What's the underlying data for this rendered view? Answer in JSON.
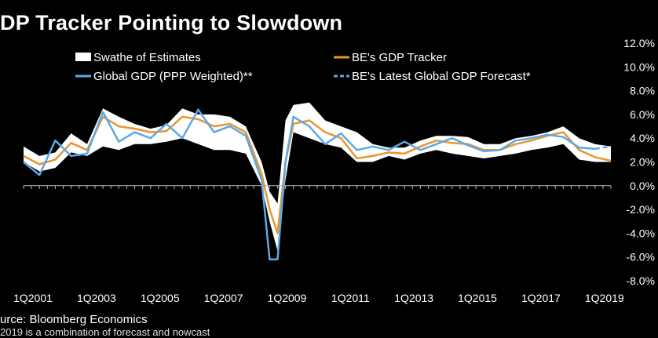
{
  "chart_data": {
    "type": "line",
    "title": "DP Tracker Pointing to Slowdown",
    "source": "urce: Bloomberg Economics",
    "footnote": "2019 is a combination of forecast and nowcast",
    "ylim": [
      -8,
      12
    ],
    "y_ticks": [
      "12.0%",
      "10.0%",
      "8.0%",
      "6.0%",
      "4.0%",
      "2.0%",
      "0.0%",
      "-2.0%",
      "-4.0%",
      "-6.0%",
      "-8.0%"
    ],
    "x_ticks": [
      "1Q2001",
      "1Q2003",
      "1Q2005",
      "1Q2007",
      "1Q2009",
      "1Q2011",
      "1Q2013",
      "1Q2015",
      "1Q2017",
      "1Q2019"
    ],
    "legend": [
      {
        "label": "Swathe of Estimates",
        "color": "#ffffff",
        "style": "band"
      },
      {
        "label": "BE's GDP Tracker",
        "color": "#e8962e",
        "style": "solid"
      },
      {
        "label": "Global GDP (PPP Weighted)**",
        "color": "#5aa9e6",
        "style": "solid"
      },
      {
        "label": "BE's Latest Global GDP Forecast*",
        "color": "#5aa9e6",
        "style": "dashed"
      }
    ],
    "x_start": 2001.0,
    "x_end": 2019.5,
    "band": {
      "x": [
        2001.0,
        2001.5,
        2002.0,
        2002.5,
        2003.0,
        2003.5,
        2004.0,
        2004.5,
        2005.0,
        2005.5,
        2006.0,
        2006.5,
        2007.0,
        2007.5,
        2008.0,
        2008.5,
        2008.75,
        2009.0,
        2009.25,
        2009.5,
        2010.0,
        2010.5,
        2011.0,
        2011.5,
        2012.0,
        2012.5,
        2013.0,
        2013.5,
        2014.0,
        2014.5,
        2015.0,
        2015.5,
        2016.0,
        2016.5,
        2017.0,
        2017.5,
        2018.0,
        2018.5,
        2019.0,
        2019.5
      ],
      "upper": [
        3.3,
        2.5,
        2.8,
        4.4,
        3.5,
        6.5,
        5.8,
        5.2,
        4.8,
        5.1,
        6.5,
        6.0,
        6.0,
        5.8,
        5.0,
        2.0,
        -0.5,
        -1.5,
        5.5,
        6.8,
        7.0,
        5.5,
        5.0,
        4.5,
        3.5,
        3.2,
        3.2,
        3.8,
        4.2,
        4.2,
        4.1,
        3.5,
        3.5,
        4.0,
        4.2,
        4.5,
        5.0,
        4.0,
        3.5,
        3.3
      ],
      "lower": [
        2.0,
        1.2,
        1.5,
        2.8,
        2.5,
        3.3,
        3.0,
        3.5,
        3.5,
        3.7,
        4.0,
        3.5,
        3.0,
        3.0,
        2.7,
        0.0,
        -3.0,
        -5.5,
        0.5,
        4.5,
        4.0,
        3.5,
        3.2,
        2.0,
        2.0,
        2.5,
        2.2,
        2.7,
        3.0,
        2.7,
        2.5,
        2.3,
        2.5,
        2.7,
        3.0,
        3.2,
        3.5,
        2.2,
        2.0,
        2.0
      ]
    },
    "series": [
      {
        "name": "BE's GDP Tracker",
        "color": "#e8962e",
        "x": [
          2001.0,
          2001.5,
          2002.0,
          2002.5,
          2003.0,
          2003.5,
          2004.0,
          2004.5,
          2005.0,
          2005.5,
          2006.0,
          2006.5,
          2007.0,
          2007.5,
          2008.0,
          2008.5,
          2008.75,
          2009.0,
          2009.25,
          2009.5,
          2010.0,
          2010.5,
          2011.0,
          2011.5,
          2012.0,
          2012.5,
          2013.0,
          2013.5,
          2014.0,
          2014.5,
          2015.0,
          2015.5,
          2016.0,
          2016.5,
          2017.0,
          2017.5,
          2018.0,
          2018.5,
          2019.0,
          2019.5
        ],
        "values": [
          2.5,
          1.8,
          2.2,
          3.6,
          3.0,
          5.8,
          5.0,
          4.8,
          4.5,
          4.6,
          5.8,
          5.6,
          5.0,
          5.2,
          4.5,
          1.0,
          -2.0,
          -4.0,
          2.0,
          5.2,
          5.5,
          4.5,
          4.0,
          2.3,
          2.5,
          2.8,
          2.7,
          3.3,
          3.8,
          3.6,
          3.5,
          3.0,
          3.0,
          3.5,
          3.8,
          4.2,
          4.5,
          3.0,
          2.4,
          2.1
        ]
      },
      {
        "name": "Global GDP (PPP Weighted)**",
        "color": "#5aa9e6",
        "x": [
          2001.0,
          2001.5,
          2002.0,
          2002.5,
          2003.0,
          2003.5,
          2004.0,
          2004.5,
          2005.0,
          2005.5,
          2006.0,
          2006.5,
          2007.0,
          2007.5,
          2008.0,
          2008.5,
          2008.75,
          2009.0,
          2009.25,
          2009.5,
          2010.0,
          2010.5,
          2011.0,
          2011.5,
          2012.0,
          2012.5,
          2013.0,
          2013.5,
          2014.0,
          2014.5,
          2015.0,
          2015.5,
          2016.0,
          2016.5,
          2017.0,
          2017.5,
          2018.0,
          2018.5,
          2019.0
        ],
        "values": [
          2.0,
          0.9,
          3.8,
          2.5,
          2.7,
          6.2,
          3.7,
          4.5,
          4.0,
          5.2,
          4.0,
          6.4,
          4.5,
          5.0,
          4.2,
          0.5,
          -6.2,
          -6.2,
          2.0,
          5.8,
          5.0,
          3.5,
          4.4,
          3.0,
          3.3,
          3.0,
          3.7,
          3.0,
          3.5,
          4.0,
          3.4,
          2.9,
          3.0,
          3.8,
          4.0,
          4.3,
          4.1,
          3.2,
          3.1
        ]
      },
      {
        "name": "BE's Latest Global GDP Forecast*",
        "color": "#5aa9e6",
        "dashed": true,
        "x": [
          2019.0,
          2019.25,
          2019.5
        ],
        "values": [
          3.1,
          3.2,
          3.3
        ]
      }
    ]
  }
}
